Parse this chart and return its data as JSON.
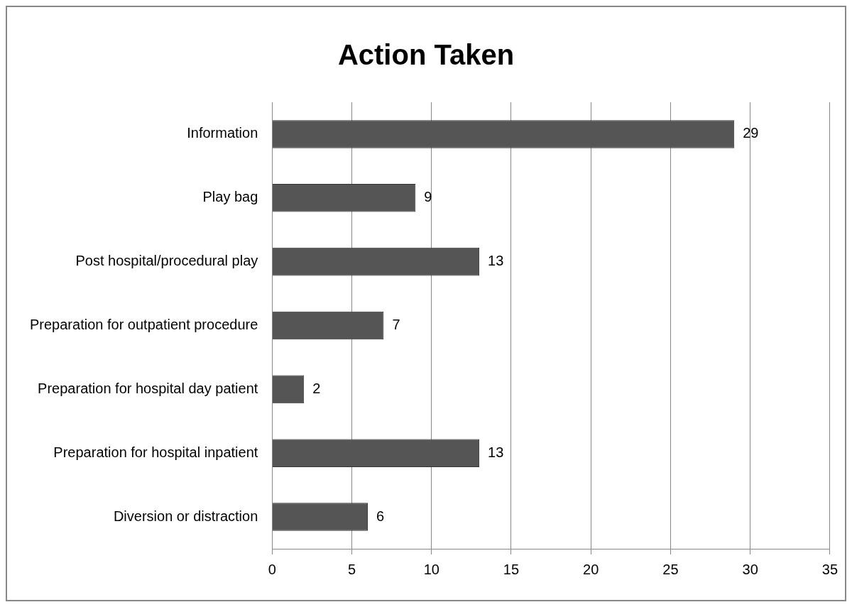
{
  "chart_data": {
    "type": "bar",
    "orientation": "horizontal",
    "title": "Action Taken",
    "categories": [
      "Information",
      "Play bag",
      "Post hospital/procedural play",
      "Preparation for outpatient procedure",
      "Preparation for hospital day patient",
      "Preparation for hospital inpatient",
      "Diversion or distraction"
    ],
    "values": [
      29,
      9,
      13,
      7,
      2,
      13,
      6
    ],
    "color": "#555555",
    "xlim": [
      0,
      35
    ],
    "xticks": [
      0,
      5,
      10,
      15,
      20,
      25,
      30,
      35
    ],
    "grid": "x",
    "data_labels": true,
    "legend": false
  }
}
